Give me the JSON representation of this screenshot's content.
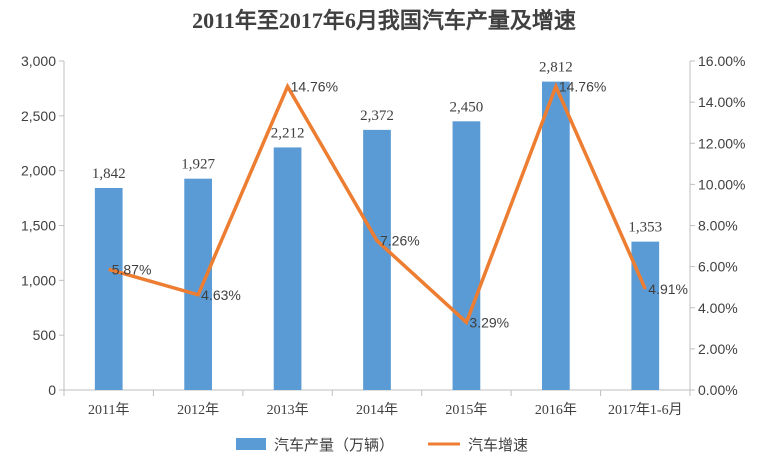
{
  "chart_data": {
    "type": "bar",
    "title": "2011年至2017年6月我国汽车产量及增速",
    "categories": [
      "2011年",
      "2012年",
      "2013年",
      "2014年",
      "2015年",
      "2016年",
      "2017年1-6月"
    ],
    "series": [
      {
        "name": "汽车产量（万辆）",
        "type": "bar",
        "axis": "left",
        "color": "#5b9bd5",
        "values": [
          1842,
          1927,
          2212,
          2372,
          2450,
          2812,
          1353
        ],
        "labels": [
          "1,842",
          "1,927",
          "2,212",
          "2,372",
          "2,450",
          "2,812",
          "1,353"
        ]
      },
      {
        "name": "汽车增速",
        "type": "line",
        "axis": "right",
        "color": "#ed7d31",
        "values": [
          5.87,
          4.63,
          14.76,
          7.26,
          3.29,
          14.76,
          4.91
        ],
        "labels": [
          "5.87%",
          "4.63%",
          "14.76%",
          "7.26%",
          "3.29%",
          "14.76%",
          "4.91%"
        ]
      }
    ],
    "y_left": {
      "ylim": [
        0,
        3000
      ],
      "ticks": [
        0,
        500,
        1000,
        1500,
        2000,
        2500,
        3000
      ],
      "tick_labels": [
        "0",
        "500",
        "1,000",
        "1,500",
        "2,000",
        "2,500",
        "3,000"
      ]
    },
    "y_right": {
      "ylim": [
        0,
        16
      ],
      "ticks": [
        0,
        2,
        4,
        6,
        8,
        10,
        12,
        14,
        16
      ],
      "tick_labels": [
        "0.00%",
        "2.00%",
        "4.00%",
        "6.00%",
        "8.00%",
        "10.00%",
        "12.00%",
        "14.00%",
        "16.00%"
      ]
    },
    "grid": false,
    "legend": "bottom"
  }
}
